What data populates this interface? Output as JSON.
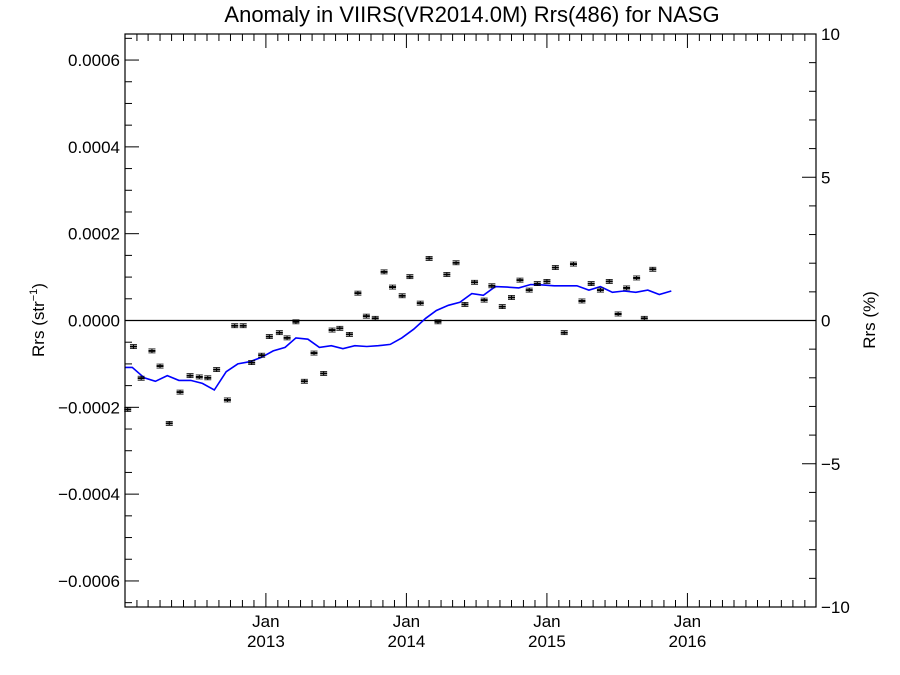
{
  "chart_data": {
    "type": "scatter",
    "title": "Anomaly in VIIRS(VR2014.0M) Rrs(486) for NASG",
    "ylabel_left": "Rrs (str⁻¹)",
    "ylabel_right": "Rrs (%)",
    "xlabel": "",
    "x_range": [
      "2012-01-01",
      "2016-11-30"
    ],
    "ylim_left": [
      -0.00066,
      0.00066
    ],
    "ylim_right": [
      -10,
      10
    ],
    "yticks_left": [
      {
        "value": 0.0006,
        "label": "0.0006"
      },
      {
        "value": 0.0004,
        "label": "0.0004"
      },
      {
        "value": 0.0002,
        "label": "0.0002"
      },
      {
        "value": 0.0,
        "label": "0.0000"
      },
      {
        "value": -0.0002,
        "label": "−0.0002"
      },
      {
        "value": -0.0004,
        "label": "−0.0004"
      },
      {
        "value": -0.0006,
        "label": "−0.0006"
      }
    ],
    "yticks_right": [
      {
        "value": 10,
        "label": "10"
      },
      {
        "value": 5,
        "label": "5"
      },
      {
        "value": 0,
        "label": "0"
      },
      {
        "value": -5,
        "label": "−5"
      },
      {
        "value": -10,
        "label": "−10"
      }
    ],
    "xticks": [
      {
        "date": "2013-01-01",
        "month": "Jan",
        "year": "2013"
      },
      {
        "date": "2014-01-01",
        "month": "Jan",
        "year": "2014"
      },
      {
        "date": "2015-01-01",
        "month": "Jan",
        "year": "2015"
      },
      {
        "date": "2016-01-01",
        "month": "Jan",
        "year": "2016"
      }
    ],
    "zero_line": true,
    "series": [
      {
        "kind": "points_with_errorbars",
        "color": "#000000",
        "points": [
          {
            "date": "2012-01-08",
            "y": -0.000205
          },
          {
            "date": "2012-01-23",
            "y": -6e-05
          },
          {
            "date": "2012-02-12",
            "y": -0.000133
          },
          {
            "date": "2012-03-11",
            "y": -7e-05
          },
          {
            "date": "2012-04-01",
            "y": -0.000105
          },
          {
            "date": "2012-04-25",
            "y": -0.000237
          },
          {
            "date": "2012-05-23",
            "y": -0.000165
          },
          {
            "date": "2012-06-18",
            "y": -0.000127
          },
          {
            "date": "2012-07-12",
            "y": -0.00013
          },
          {
            "date": "2012-08-03",
            "y": -0.000132
          },
          {
            "date": "2012-08-26",
            "y": -0.000113
          },
          {
            "date": "2012-09-23",
            "y": -0.000183
          },
          {
            "date": "2012-10-12",
            "y": -1.2e-05
          },
          {
            "date": "2012-11-03",
            "y": -1.2e-05
          },
          {
            "date": "2012-11-25",
            "y": -9.7e-05
          },
          {
            "date": "2012-12-21",
            "y": -8e-05
          },
          {
            "date": "2013-01-10",
            "y": -3.7e-05
          },
          {
            "date": "2013-02-05",
            "y": -2.8e-05
          },
          {
            "date": "2013-02-25",
            "y": -4e-05
          },
          {
            "date": "2013-03-20",
            "y": -3e-06
          },
          {
            "date": "2013-04-11",
            "y": -0.00014
          },
          {
            "date": "2013-05-06",
            "y": -7.5e-05
          },
          {
            "date": "2013-05-31",
            "y": -0.000122
          },
          {
            "date": "2013-06-22",
            "y": -2.2e-05
          },
          {
            "date": "2013-07-12",
            "y": -1.8e-05
          },
          {
            "date": "2013-08-06",
            "y": -3.2e-05
          },
          {
            "date": "2013-08-28",
            "y": 6.3e-05
          },
          {
            "date": "2013-09-19",
            "y": 1e-05
          },
          {
            "date": "2013-10-12",
            "y": 5e-06
          },
          {
            "date": "2013-11-04",
            "y": 0.000112
          },
          {
            "date": "2013-11-26",
            "y": 7.7e-05
          },
          {
            "date": "2013-12-21",
            "y": 5.7e-05
          },
          {
            "date": "2014-01-10",
            "y": 0.000101
          },
          {
            "date": "2014-02-06",
            "y": 4e-05
          },
          {
            "date": "2014-03-01",
            "y": 0.000143
          },
          {
            "date": "2014-03-24",
            "y": -3e-06
          },
          {
            "date": "2014-04-16",
            "y": 0.000106
          },
          {
            "date": "2014-05-10",
            "y": 0.000133
          },
          {
            "date": "2014-06-02",
            "y": 3.7e-05
          },
          {
            "date": "2014-06-27",
            "y": 8.8e-05
          },
          {
            "date": "2014-07-22",
            "y": 4.7e-05
          },
          {
            "date": "2014-08-11",
            "y": 8e-05
          },
          {
            "date": "2014-09-07",
            "y": 3.2e-05
          },
          {
            "date": "2014-10-01",
            "y": 5.3e-05
          },
          {
            "date": "2014-10-23",
            "y": 9.3e-05
          },
          {
            "date": "2014-11-16",
            "y": 7e-05
          },
          {
            "date": "2014-12-07",
            "y": 8.5e-05
          },
          {
            "date": "2015-01-01",
            "y": 9e-05
          },
          {
            "date": "2015-01-23",
            "y": 0.000122
          },
          {
            "date": "2015-02-15",
            "y": -2.8e-05
          },
          {
            "date": "2015-03-11",
            "y": 0.00013
          },
          {
            "date": "2015-04-02",
            "y": 4.5e-05
          },
          {
            "date": "2015-04-26",
            "y": 8.5e-05
          },
          {
            "date": "2015-05-20",
            "y": 7e-05
          },
          {
            "date": "2015-06-12",
            "y": 9e-05
          },
          {
            "date": "2015-07-05",
            "y": 1.5e-05
          },
          {
            "date": "2015-07-27",
            "y": 7.5e-05
          },
          {
            "date": "2015-08-22",
            "y": 9.8e-05
          },
          {
            "date": "2015-09-11",
            "y": 5e-06
          },
          {
            "date": "2015-10-03",
            "y": 0.000118
          }
        ]
      },
      {
        "kind": "line",
        "color": "#0000ff",
        "points": [
          {
            "date": "2012-01-01",
            "y": -0.000108
          },
          {
            "date": "2012-01-20",
            "y": -0.000108
          },
          {
            "date": "2012-02-20",
            "y": -0.000132
          },
          {
            "date": "2012-03-20",
            "y": -0.00014
          },
          {
            "date": "2012-04-20",
            "y": -0.000127
          },
          {
            "date": "2012-05-20",
            "y": -0.000138
          },
          {
            "date": "2012-06-20",
            "y": -0.000138
          },
          {
            "date": "2012-07-20",
            "y": -0.000145
          },
          {
            "date": "2012-08-20",
            "y": -0.00016
          },
          {
            "date": "2012-09-20",
            "y": -0.000118
          },
          {
            "date": "2012-10-20",
            "y": -0.0001
          },
          {
            "date": "2012-11-20",
            "y": -9.5e-05
          },
          {
            "date": "2012-12-20",
            "y": -8.5e-05
          },
          {
            "date": "2013-01-20",
            "y": -7e-05
          },
          {
            "date": "2013-02-20",
            "y": -6.2e-05
          },
          {
            "date": "2013-03-20",
            "y": -4e-05
          },
          {
            "date": "2013-04-20",
            "y": -4.3e-05
          },
          {
            "date": "2013-05-20",
            "y": -6.2e-05
          },
          {
            "date": "2013-06-20",
            "y": -5.8e-05
          },
          {
            "date": "2013-07-20",
            "y": -6.5e-05
          },
          {
            "date": "2013-08-20",
            "y": -5.8e-05
          },
          {
            "date": "2013-09-20",
            "y": -6e-05
          },
          {
            "date": "2013-10-20",
            "y": -5.8e-05
          },
          {
            "date": "2013-11-20",
            "y": -5.5e-05
          },
          {
            "date": "2013-12-20",
            "y": -4e-05
          },
          {
            "date": "2014-01-20",
            "y": -2e-05
          },
          {
            "date": "2014-02-20",
            "y": 5e-06
          },
          {
            "date": "2014-03-20",
            "y": 2.3e-05
          },
          {
            "date": "2014-04-20",
            "y": 3.5e-05
          },
          {
            "date": "2014-05-20",
            "y": 4.2e-05
          },
          {
            "date": "2014-06-20",
            "y": 6.2e-05
          },
          {
            "date": "2014-07-20",
            "y": 5.8e-05
          },
          {
            "date": "2014-08-20",
            "y": 7.8e-05
          },
          {
            "date": "2014-09-20",
            "y": 7.7e-05
          },
          {
            "date": "2014-10-20",
            "y": 7.5e-05
          },
          {
            "date": "2014-11-20",
            "y": 8.3e-05
          },
          {
            "date": "2014-12-20",
            "y": 8.2e-05
          },
          {
            "date": "2015-01-20",
            "y": 8e-05
          },
          {
            "date": "2015-02-20",
            "y": 8e-05
          },
          {
            "date": "2015-03-20",
            "y": 8e-05
          },
          {
            "date": "2015-04-20",
            "y": 7e-05
          },
          {
            "date": "2015-05-20",
            "y": 7.8e-05
          },
          {
            "date": "2015-06-20",
            "y": 6.5e-05
          },
          {
            "date": "2015-07-20",
            "y": 6.8e-05
          },
          {
            "date": "2015-08-20",
            "y": 6.5e-05
          },
          {
            "date": "2015-09-20",
            "y": 7e-05
          },
          {
            "date": "2015-10-20",
            "y": 6e-05
          },
          {
            "date": "2015-11-20",
            "y": 6.8e-05
          }
        ]
      }
    ]
  }
}
